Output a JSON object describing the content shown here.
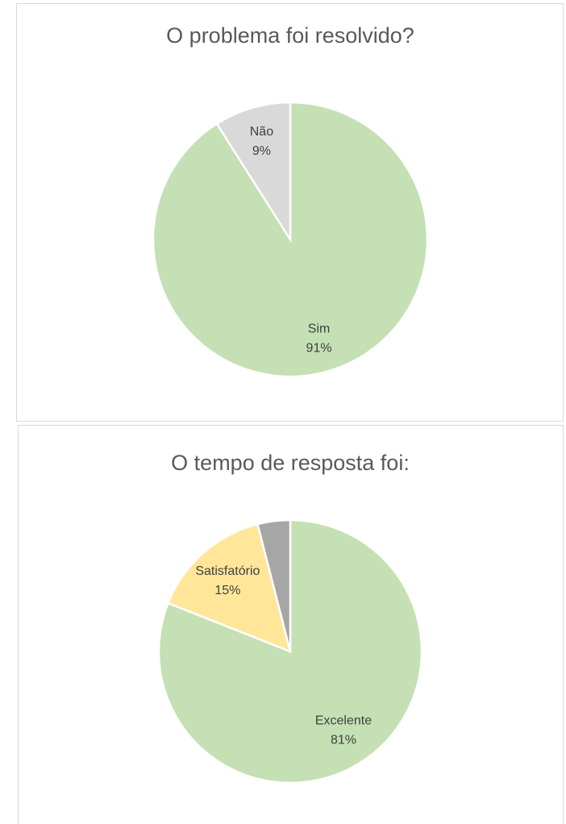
{
  "chart_data": [
    {
      "type": "pie",
      "title": "O problema foi resolvido?",
      "categories": [
        "Sim",
        "Não"
      ],
      "values": [
        91,
        9
      ],
      "value_labels": [
        "91%",
        "9%"
      ],
      "colors": [
        "#c5e0b4",
        "#d9d9d9"
      ]
    },
    {
      "type": "pie",
      "title": "O tempo de resposta foi:",
      "categories": [
        "Excelente",
        "Satisfatório",
        null
      ],
      "values": [
        81,
        15,
        4
      ],
      "value_labels": [
        "81%",
        "15%",
        null
      ],
      "colors": [
        "#c5e0b4",
        "#ffe699",
        "#a6a6a6"
      ]
    }
  ]
}
